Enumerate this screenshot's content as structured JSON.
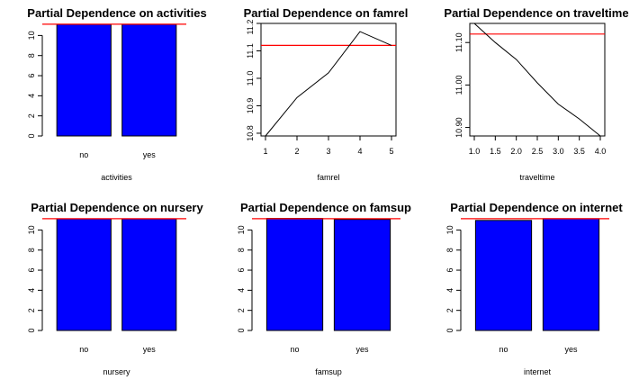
{
  "chart_data": [
    {
      "type": "bar",
      "title": "Partial Dependence on activities",
      "xlabel": "activities",
      "categories": [
        "no",
        "yes"
      ],
      "values": [
        11.1,
        11.1
      ],
      "reference_line": 11.12,
      "ylim": [
        0,
        11.2
      ],
      "yticks": [
        0,
        2,
        4,
        6,
        8,
        10
      ],
      "bar_color": "#0000ff",
      "line_color": "#ff0000"
    },
    {
      "type": "line",
      "title": "Partial Dependence on famrel",
      "xlabel": "famrel",
      "x": [
        1,
        2,
        3,
        4,
        5
      ],
      "values": [
        10.79,
        10.93,
        11.02,
        11.17,
        11.12
      ],
      "reference_line": 11.12,
      "xlim": [
        1,
        5
      ],
      "ylim": [
        10.79,
        11.2
      ],
      "xticks": [
        1,
        2,
        3,
        4,
        5
      ],
      "yticks": [
        10.8,
        10.9,
        11.0,
        11.1,
        11.2
      ],
      "ytick_labels": [
        "10.8",
        "10.9",
        "11.0",
        "11.1",
        "11.2"
      ],
      "line_color": "#ff0000"
    },
    {
      "type": "line",
      "title": "Partial Dependence on traveltime",
      "xlabel": "traveltime",
      "x": [
        1.0,
        1.5,
        2.0,
        2.5,
        3.0,
        3.5,
        4.0
      ],
      "values": [
        11.145,
        11.1,
        11.06,
        11.005,
        10.955,
        10.92,
        10.88
      ],
      "reference_line": 11.12,
      "xlim": [
        1.0,
        4.0
      ],
      "ylim": [
        10.88,
        11.145
      ],
      "xticks": [
        1.0,
        1.5,
        2.0,
        2.5,
        3.0,
        3.5,
        4.0
      ],
      "xtick_labels": [
        "1.0",
        "1.5",
        "2.0",
        "2.5",
        "3.0",
        "3.5",
        "4.0"
      ],
      "yticks": [
        10.9,
        11.0,
        11.1
      ],
      "ytick_labels": [
        "10.90",
        "11.00",
        "11.10"
      ],
      "line_color": "#ff0000"
    },
    {
      "type": "bar",
      "title": "Partial Dependence on nursery",
      "xlabel": "nursery",
      "categories": [
        "no",
        "yes"
      ],
      "values": [
        11.1,
        11.1
      ],
      "reference_line": 11.12,
      "ylim": [
        0,
        11.2
      ],
      "yticks": [
        0,
        2,
        4,
        6,
        8,
        10
      ],
      "bar_color": "#0000ff",
      "line_color": "#ff0000"
    },
    {
      "type": "bar",
      "title": "Partial Dependence on famsup",
      "xlabel": "famsup",
      "categories": [
        "no",
        "yes"
      ],
      "values": [
        11.15,
        11.05
      ],
      "reference_line": 11.12,
      "ylim": [
        0,
        11.2
      ],
      "yticks": [
        0,
        2,
        4,
        6,
        8,
        10
      ],
      "bar_color": "#0000ff",
      "line_color": "#ff0000"
    },
    {
      "type": "bar",
      "title": "Partial Dependence on internet",
      "xlabel": "internet",
      "categories": [
        "no",
        "yes"
      ],
      "values": [
        10.95,
        11.12
      ],
      "reference_line": 11.12,
      "ylim": [
        0,
        11.2
      ],
      "yticks": [
        0,
        2,
        4,
        6,
        8,
        10
      ],
      "bar_color": "#0000ff",
      "line_color": "#ff0000"
    }
  ]
}
